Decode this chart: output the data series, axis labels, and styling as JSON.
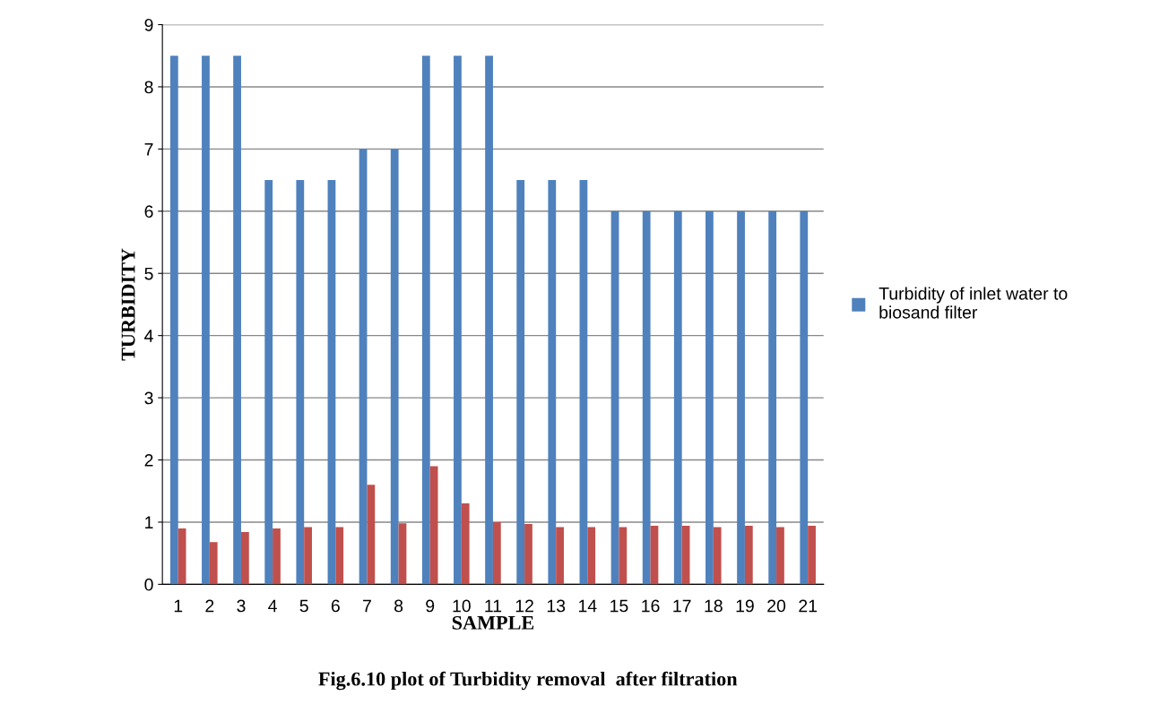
{
  "chart_data": {
    "type": "bar",
    "title": "Fig.6.10 plot of Turbidity removal  after filtration",
    "xlabel": "SAMPLE",
    "ylabel": "TURBIDITY",
    "categories": [
      "1",
      "2",
      "3",
      "4",
      "5",
      "6",
      "7",
      "8",
      "9",
      "10",
      "11",
      "12",
      "13",
      "14",
      "15",
      "16",
      "17",
      "18",
      "19",
      "20",
      "21"
    ],
    "series": [
      {
        "name": "Turbidity of inlet water to biosand filter",
        "color": "#4f81bd",
        "values": [
          8.5,
          8.5,
          8.5,
          6.5,
          6.5,
          6.5,
          7,
          7,
          8.5,
          8.5,
          8.5,
          6.5,
          6.5,
          6.5,
          6,
          6,
          6,
          6,
          6,
          6,
          6
        ]
      },
      {
        "color": "#c0504d",
        "values": [
          0.9,
          0.68,
          0.84,
          0.9,
          0.92,
          0.92,
          1.6,
          0.98,
          1.9,
          1.3,
          1.0,
          0.97,
          0.92,
          0.92,
          0.92,
          0.94,
          0.94,
          0.92,
          0.94,
          0.92,
          0.94
        ]
      }
    ],
    "ylim": [
      0,
      9
    ],
    "yticks": [
      0,
      1,
      2,
      3,
      4,
      5,
      6,
      7,
      8,
      9
    ],
    "grid": "y",
    "legend": "right"
  }
}
